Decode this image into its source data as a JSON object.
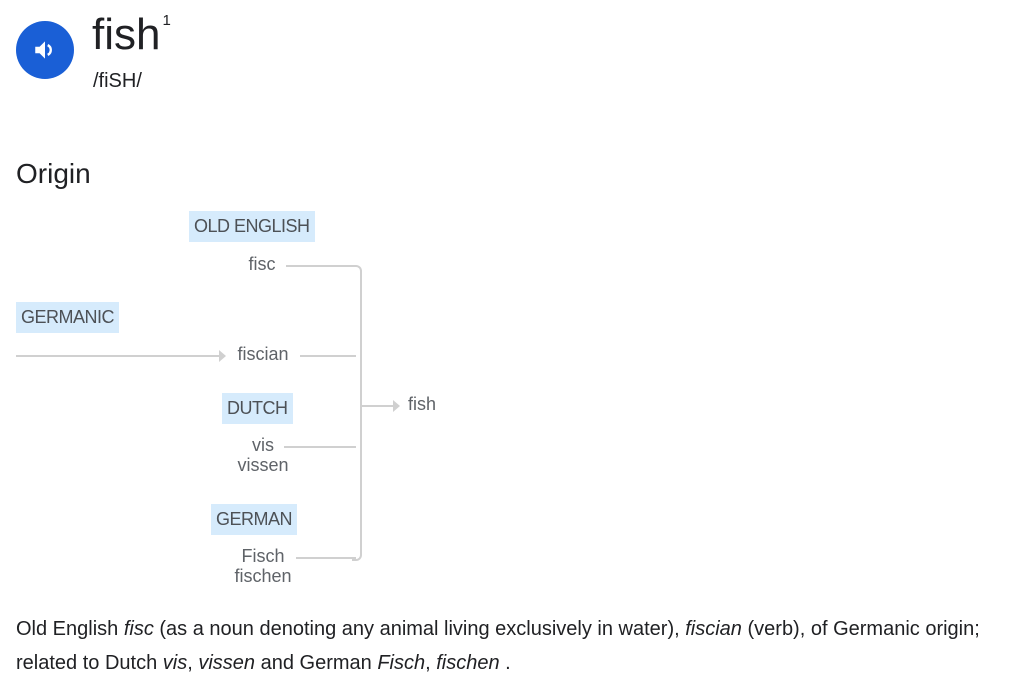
{
  "entry": {
    "word": "fish",
    "superscript": "1",
    "pronunciation": "/fiSH/",
    "speaker_icon": "volume-icon",
    "speaker_color": "#1a5fd6"
  },
  "origin": {
    "heading": "Origin",
    "languages": {
      "old_english": "OLD ENGLISH",
      "germanic": "GERMANIC",
      "dutch": "DUTCH",
      "german": "GERMAN"
    },
    "words": {
      "fisc": "fisc",
      "fiscian": "fiscian",
      "vis": "vis",
      "vissen": "vissen",
      "fisch": "Fisch",
      "fischen": "fischen",
      "result": "fish"
    },
    "label_bg": "#d6ebfc",
    "text": {
      "p1": "Old English ",
      "p2": "fisc",
      "p3": " (as a noun denoting any animal living exclusively in water), ",
      "p4": "fiscian",
      "p5": " (verb), of Germanic origin; related to Dutch ",
      "p6": "vis",
      "p7": ", ",
      "p8": "vissen",
      "p9": " and German ",
      "p10": "Fisch",
      "p11": ", ",
      "p12": "fischen",
      "p13": " ."
    }
  }
}
